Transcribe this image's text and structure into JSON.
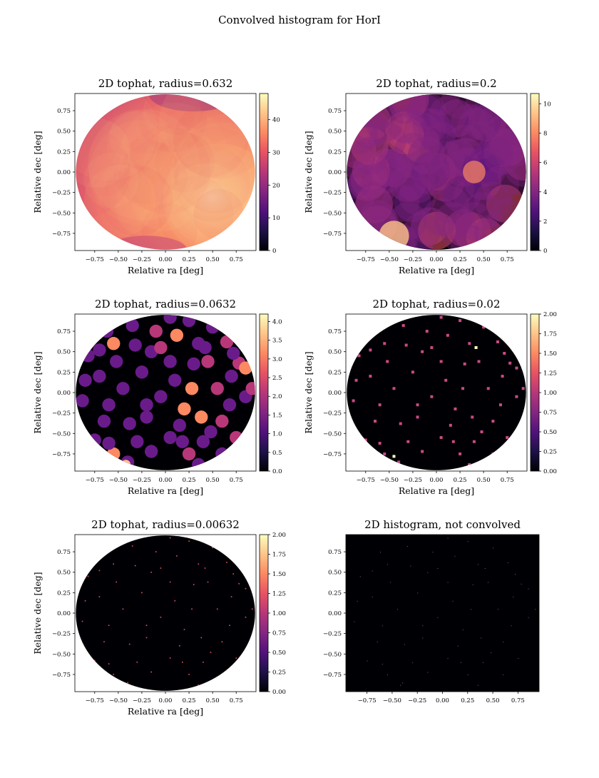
{
  "figure": {
    "suptitle": "Convolved histogram for HorI"
  },
  "colors": {
    "colormap": "magma",
    "stops": [
      "#000004",
      "#1d1147",
      "#51127c",
      "#832681",
      "#b73779",
      "#e75263",
      "#fc8961",
      "#fec488",
      "#fcfdbf"
    ],
    "background": "#000004",
    "frame": "#000000"
  },
  "chart_data": [
    {
      "type": "heatmap",
      "title": "2D tophat, radius=0.632",
      "xlabel": "Relative ra [deg]",
      "ylabel": "Relative dec [deg]",
      "xticks": [
        "−0.75",
        "−0.50",
        "−0.25",
        "0.00",
        "0.25",
        "0.50",
        "0.75"
      ],
      "yticks": [
        "0.75",
        "0.50",
        "0.25",
        "0.00",
        "−0.25",
        "−0.50",
        "−0.75"
      ],
      "xlim": [
        -0.96,
        0.96
      ],
      "ylim": [
        -0.96,
        0.96
      ],
      "colorbar": {
        "ticks": [
          "0",
          "10",
          "20",
          "30",
          "40"
        ],
        "min": 0,
        "max": 48
      },
      "footprint": "circle of radius ~0.95 deg centred on (0, 0)",
      "peak": {
        "x": 0.5,
        "y": -0.3,
        "value": 48
      },
      "background_value": 32
    },
    {
      "type": "heatmap",
      "title": "2D tophat, radius=0.2",
      "xlabel": "Relative ra [deg]",
      "ylabel": "Relative dec [deg]",
      "xticks": [
        "−0.75",
        "−0.50",
        "−0.25",
        "0.00",
        "0.25",
        "0.50",
        "0.75"
      ],
      "yticks": [
        "0.75",
        "0.50",
        "0.25",
        "0.00",
        "−0.25",
        "−0.50",
        "−0.75"
      ],
      "xlim": [
        -0.96,
        0.96
      ],
      "ylim": [
        -0.96,
        0.96
      ],
      "colorbar": {
        "ticks": [
          "0",
          "2",
          "4",
          "6",
          "8",
          "10"
        ],
        "min": 0,
        "max": 10.7
      },
      "footprint": "circle of radius ~0.95 deg centred on (0, 0)",
      "peak": {
        "x": -0.45,
        "y": -0.78,
        "value": 10.7
      }
    },
    {
      "type": "heatmap",
      "title": "2D tophat, radius=0.0632",
      "xlabel": "Relative ra [deg]",
      "ylabel": "Relative dec [deg]",
      "xticks": [
        "−0.75",
        "−0.50",
        "−0.25",
        "0.00",
        "0.25",
        "0.50",
        "0.75"
      ],
      "yticks": [
        "0.75",
        "0.50",
        "0.25",
        "0.00",
        "−0.25",
        "−0.50",
        "−0.75"
      ],
      "xlim": [
        -0.96,
        0.96
      ],
      "ylim": [
        -0.96,
        0.96
      ],
      "colorbar": {
        "ticks": [
          "0.0",
          "0.5",
          "1.0",
          "1.5",
          "2.0",
          "2.5",
          "3.0",
          "3.5",
          "4.0"
        ],
        "min": 0,
        "max": 4.2
      },
      "footprint": "circle of radius ~0.95 deg centred on (0, 0)",
      "peak": {
        "x": -0.42,
        "y": -0.88,
        "value": 4.2
      }
    },
    {
      "type": "heatmap",
      "title": "2D tophat, radius=0.02",
      "xlabel": "Relative ra [deg]",
      "ylabel": "Relative dec [deg]",
      "xticks": [
        "−0.75",
        "−0.50",
        "−0.25",
        "0.00",
        "0.25",
        "0.50",
        "0.75"
      ],
      "yticks": [
        "0.75",
        "0.50",
        "0.25",
        "0.00",
        "−0.25",
        "−0.50",
        "−0.75"
      ],
      "xlim": [
        -0.96,
        0.96
      ],
      "ylim": [
        -0.96,
        0.96
      ],
      "colorbar": {
        "ticks": [
          "0.00",
          "0.25",
          "0.50",
          "0.75",
          "1.00",
          "1.25",
          "1.50",
          "1.75",
          "2.00"
        ],
        "min": 0,
        "max": 2
      },
      "footprint": "circle of radius ~0.95 deg centred on (0, 0)"
    },
    {
      "type": "heatmap",
      "title": "2D tophat, radius=0.00632",
      "xlabel": "Relative ra [deg]",
      "ylabel": "Relative dec [deg]",
      "xticks": [
        "−0.75",
        "−0.50",
        "−0.25",
        "0.00",
        "0.25",
        "0.50",
        "0.75"
      ],
      "yticks": [
        "0.75",
        "0.50",
        "0.25",
        "0.00",
        "−0.25",
        "−0.50",
        "−0.75"
      ],
      "xlim": [
        -0.96,
        0.96
      ],
      "ylim": [
        -0.96,
        0.96
      ],
      "colorbar": {
        "ticks": [
          "0.00",
          "0.25",
          "0.50",
          "0.75",
          "1.00",
          "1.25",
          "1.50",
          "1.75",
          "2.00"
        ],
        "min": 0,
        "max": 2
      },
      "footprint": "circle of radius ~0.95 deg centred on (0, 0)"
    },
    {
      "type": "heatmap",
      "title": "2D histogram, not convolved",
      "xlabel": "",
      "ylabel": "",
      "xticks": [
        "−0.75",
        "−0.50",
        "−0.25",
        "0.00",
        "0.25",
        "0.50",
        "0.75"
      ],
      "yticks": [
        "0.75",
        "0.50",
        "0.25",
        "0.00",
        "−0.25",
        "−0.50",
        "−0.75"
      ],
      "xlim": [
        -0.96,
        0.96
      ],
      "ylim": [
        -0.96,
        0.96
      ],
      "colorbar": null,
      "footprint": "none (whole frame black)"
    }
  ],
  "stars": [
    [
      -0.55,
      -0.75
    ],
    [
      -0.42,
      -0.88
    ],
    [
      -0.6,
      -0.62
    ],
    [
      0.35,
      -0.88
    ],
    [
      0.42,
      0.55
    ],
    [
      0.78,
      0.36
    ],
    [
      -0.35,
      0.82
    ],
    [
      0.05,
      0.92
    ],
    [
      -0.82,
      0.45
    ],
    [
      0.12,
      0.7
    ],
    [
      0.65,
      0.62
    ],
    [
      -0.7,
      0.2
    ],
    [
      -0.15,
      0.5
    ],
    [
      0.3,
      0.35
    ],
    [
      -0.45,
      0.05
    ],
    [
      0.55,
      0.05
    ],
    [
      0.85,
      -0.05
    ],
    [
      -0.88,
      -0.1
    ],
    [
      0.2,
      -0.2
    ],
    [
      -0.2,
      -0.3
    ],
    [
      0.6,
      -0.35
    ],
    [
      -0.65,
      -0.35
    ],
    [
      0.05,
      -0.55
    ],
    [
      0.4,
      -0.6
    ],
    [
      -0.3,
      -0.6
    ],
    [
      0.75,
      -0.55
    ],
    [
      0.1,
      0.15
    ],
    [
      -0.55,
      0.6
    ],
    [
      0.5,
      0.8
    ],
    [
      -0.05,
      -0.05
    ],
    [
      0.25,
      -0.75
    ],
    [
      -0.75,
      -0.58
    ],
    [
      0.7,
      0.2
    ],
    [
      -0.25,
      0.25
    ],
    [
      0.35,
      0.6
    ],
    [
      -0.1,
      0.75
    ],
    [
      0.85,
      0.3
    ],
    [
      -0.6,
      -0.15
    ],
    [
      0.15,
      -0.4
    ],
    [
      -0.4,
      -0.85
    ],
    [
      0.45,
      0.38
    ],
    [
      0.6,
      -0.75
    ],
    [
      -0.85,
      0.15
    ],
    [
      0.05,
      0.38
    ],
    [
      -0.32,
      0.58
    ],
    [
      0.28,
      0.05
    ],
    [
      0.68,
      -0.15
    ],
    [
      -0.15,
      -0.72
    ],
    [
      0.25,
      0.88
    ],
    [
      -0.52,
      0.38
    ],
    [
      0.92,
      0.05
    ],
    [
      -0.2,
      -0.15
    ],
    [
      0.48,
      -0.48
    ],
    [
      -0.7,
      0.52
    ],
    [
      0.38,
      -0.3
    ],
    [
      -0.05,
      0.55
    ],
    [
      0.72,
      0.48
    ],
    [
      -0.38,
      -0.38
    ],
    [
      0.18,
      -0.6
    ],
    [
      -0.62,
      0.75
    ]
  ]
}
